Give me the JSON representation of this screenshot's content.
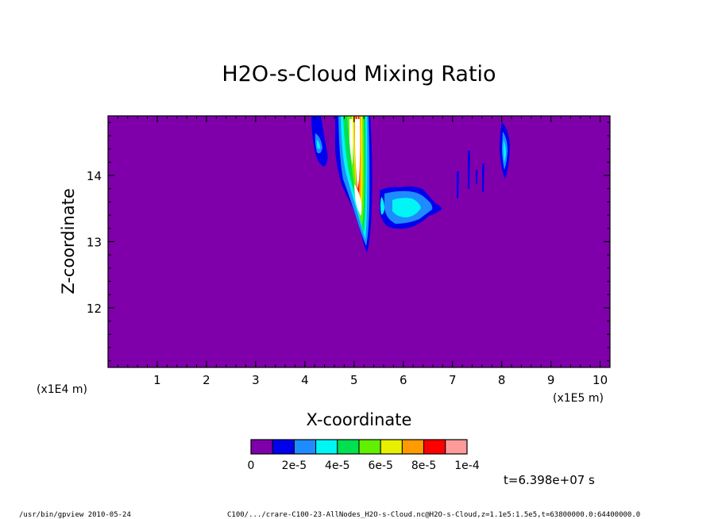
{
  "chart_data": {
    "type": "heatmap",
    "title": "H2O-s-Cloud Mixing Ratio",
    "xlabel": "X-coordinate",
    "ylabel": "Z-coordinate",
    "x_unit": "(x1E5 m)",
    "y_unit": "(x1E4 m)",
    "xlim": [
      0,
      10.2
    ],
    "ylim": [
      11.1,
      14.9
    ],
    "x_ticks": [
      "1",
      "2",
      "3",
      "4",
      "5",
      "6",
      "7",
      "8",
      "9",
      "10"
    ],
    "y_ticks": [
      "12",
      "13",
      "14"
    ],
    "background_color": "#7f00aa",
    "colorbar": {
      "colors": [
        "#7f00aa",
        "#0000ee",
        "#1e8cff",
        "#00f5f5",
        "#00e050",
        "#60f000",
        "#e6f000",
        "#ff9a00",
        "#ff0000",
        "#ff9a9a"
      ],
      "labels": [
        "0",
        "2e-5",
        "4e-5",
        "6e-5",
        "8e-5",
        "1e-4"
      ]
    },
    "features": [
      {
        "name": "main plume",
        "x_range": [
          4.7,
          5.35
        ],
        "z_range": [
          12.9,
          14.9
        ],
        "peak": "1e-4"
      },
      {
        "name": "left cloud",
        "x_range": [
          4.15,
          4.45
        ],
        "z_range": [
          14.1,
          14.9
        ],
        "peak": "4e-5"
      },
      {
        "name": "mid-level cloud",
        "x_range": [
          5.55,
          6.8
        ],
        "z_range": [
          13.2,
          13.8
        ],
        "peak": "4e-5"
      },
      {
        "name": "right cloud",
        "x_range": [
          8.0,
          8.2
        ],
        "z_range": [
          14.1,
          14.8
        ],
        "peak": "4e-5"
      },
      {
        "name": "thin streaks",
        "x_range": [
          7.1,
          7.7
        ],
        "z_range": [
          13.6,
          14.4
        ],
        "peak": "2e-5"
      }
    ]
  },
  "time_label": "t=6.398e+07 s",
  "footer": {
    "program": "/usr/bin/gpview  2010-05-24",
    "source": "C100/.../crare-C100-23-AllNodes_H2O-s-Cloud.nc@H2O-s-Cloud,z=1.1e5:1.5e5,t=63800000.0:64400000.0"
  }
}
